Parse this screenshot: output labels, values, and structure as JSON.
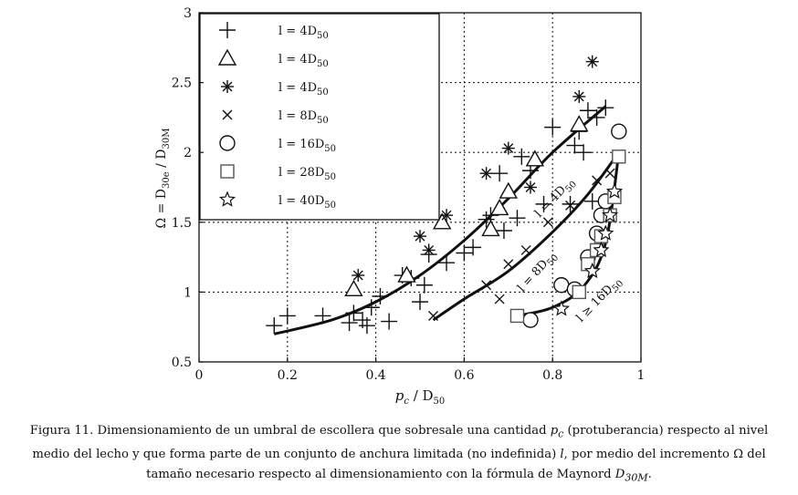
{
  "chart_data": {
    "type": "scatter",
    "title": "",
    "xlabel": "p_c / D_50",
    "ylabel": "Ω = D_30e / D_30M",
    "xlim": [
      0,
      1
    ],
    "ylim": [
      0.5,
      3
    ],
    "xticks": [
      "0",
      "0.2",
      "0.4",
      "0.6",
      "0.8",
      "1"
    ],
    "yticks": [
      "0.5",
      "1",
      "1.5",
      "2",
      "2.5",
      "3"
    ],
    "grid": "dotted",
    "legend_position": "top-left",
    "series": [
      {
        "name": "l = 4D50",
        "label_prefix": "l = 4D",
        "label_sub": "50",
        "marker": "plus",
        "points": [
          [
            0.17,
            0.76
          ],
          [
            0.2,
            0.83
          ],
          [
            0.28,
            0.83
          ],
          [
            0.34,
            0.78
          ],
          [
            0.35,
            0.85
          ],
          [
            0.37,
            0.8
          ],
          [
            0.38,
            0.76
          ],
          [
            0.39,
            0.89
          ],
          [
            0.41,
            0.97
          ],
          [
            0.43,
            0.79
          ],
          [
            0.46,
            1.12
          ],
          [
            0.48,
            1.1
          ],
          [
            0.5,
            0.93
          ],
          [
            0.51,
            1.05
          ],
          [
            0.52,
            1.27
          ],
          [
            0.56,
            1.21
          ],
          [
            0.6,
            1.28
          ],
          [
            0.62,
            1.32
          ],
          [
            0.65,
            1.52
          ],
          [
            0.68,
            1.85
          ],
          [
            0.69,
            1.44
          ],
          [
            0.72,
            1.53
          ],
          [
            0.73,
            1.97
          ],
          [
            0.75,
            1.87
          ],
          [
            0.78,
            1.63
          ],
          [
            0.8,
            2.18
          ],
          [
            0.84,
            1.63
          ],
          [
            0.85,
            2.05
          ],
          [
            0.86,
            2.15
          ],
          [
            0.87,
            2.0
          ],
          [
            0.88,
            2.3
          ],
          [
            0.89,
            1.65
          ],
          [
            0.9,
            2.25
          ],
          [
            0.92,
            2.32
          ],
          [
            0.66,
            1.55
          ]
        ]
      },
      {
        "name": "l = 4D50",
        "label_prefix": "l = 4D",
        "label_sub": "50",
        "marker": "triangle",
        "points": [
          [
            0.35,
            1.02
          ],
          [
            0.47,
            1.12
          ],
          [
            0.55,
            1.5
          ],
          [
            0.66,
            1.45
          ],
          [
            0.68,
            1.6
          ],
          [
            0.7,
            1.72
          ],
          [
            0.76,
            1.95
          ],
          [
            0.86,
            2.2
          ]
        ]
      },
      {
        "name": "l = 4D50",
        "label_prefix": "l = 4D",
        "label_sub": "50",
        "marker": "asterisk",
        "points": [
          [
            0.36,
            1.12
          ],
          [
            0.5,
            1.4
          ],
          [
            0.52,
            1.3
          ],
          [
            0.56,
            1.55
          ],
          [
            0.65,
            1.85
          ],
          [
            0.7,
            2.03
          ],
          [
            0.75,
            1.75
          ],
          [
            0.86,
            2.4
          ],
          [
            0.89,
            2.65
          ],
          [
            0.95,
            1.97
          ]
        ]
      },
      {
        "name": "l = 8D50",
        "label_prefix": "l = 8D",
        "label_sub": "50",
        "marker": "cross",
        "points": [
          [
            0.53,
            0.83
          ],
          [
            0.65,
            1.05
          ],
          [
            0.68,
            0.95
          ],
          [
            0.7,
            1.2
          ],
          [
            0.74,
            1.3
          ],
          [
            0.79,
            1.5
          ],
          [
            0.84,
            1.62
          ],
          [
            0.9,
            1.8
          ],
          [
            0.93,
            1.85
          ]
        ]
      },
      {
        "name": "l = 16D50",
        "label_prefix": "l = 16D",
        "label_sub": "50",
        "marker": "circle",
        "points": [
          [
            0.75,
            0.8
          ],
          [
            0.82,
            1.05
          ],
          [
            0.85,
            1.02
          ],
          [
            0.88,
            1.25
          ],
          [
            0.9,
            1.42
          ],
          [
            0.91,
            1.55
          ],
          [
            0.92,
            1.65
          ],
          [
            0.95,
            2.15
          ]
        ]
      },
      {
        "name": "l = 28D50",
        "label_prefix": "l = 28D",
        "label_sub": "50",
        "marker": "square",
        "points": [
          [
            0.72,
            0.83
          ],
          [
            0.86,
            1.0
          ],
          [
            0.88,
            1.2
          ],
          [
            0.9,
            1.3
          ],
          [
            0.91,
            1.4
          ],
          [
            0.93,
            1.55
          ],
          [
            0.94,
            1.68
          ],
          [
            0.95,
            1.97
          ]
        ]
      },
      {
        "name": "l = 40D50",
        "label_prefix": "l = 40D",
        "label_sub": "50",
        "marker": "star",
        "points": [
          [
            0.82,
            0.88
          ],
          [
            0.89,
            1.15
          ],
          [
            0.91,
            1.3
          ],
          [
            0.92,
            1.42
          ],
          [
            0.93,
            1.55
          ],
          [
            0.94,
            1.72
          ]
        ]
      }
    ],
    "curves": [
      {
        "name": "curve-4d50",
        "label_prefix": "l = 4D",
        "label_sub": "50",
        "points": [
          [
            0.17,
            0.7
          ],
          [
            0.3,
            0.8
          ],
          [
            0.4,
            0.93
          ],
          [
            0.5,
            1.12
          ],
          [
            0.6,
            1.37
          ],
          [
            0.7,
            1.67
          ],
          [
            0.8,
            2.0
          ],
          [
            0.92,
            2.33
          ]
        ],
        "label_at": [
          0.81,
          1.66
        ],
        "label_angle": -46
      },
      {
        "name": "curve-8d50",
        "label_prefix": "l = 8D",
        "label_sub": "50",
        "points": [
          [
            0.53,
            0.8
          ],
          [
            0.6,
            0.95
          ],
          [
            0.7,
            1.15
          ],
          [
            0.8,
            1.43
          ],
          [
            0.88,
            1.7
          ],
          [
            0.95,
            2.0
          ]
        ],
        "label_at": [
          0.77,
          1.13
        ],
        "label_angle": -48
      },
      {
        "name": "curve-16d50",
        "label_prefix": "l ≥ 16D",
        "label_sub": "50",
        "points": [
          [
            0.72,
            0.83
          ],
          [
            0.8,
            0.89
          ],
          [
            0.87,
            1.04
          ],
          [
            0.92,
            1.35
          ],
          [
            0.95,
            2.0
          ]
        ],
        "label_at": [
          0.91,
          0.93
        ],
        "label_angle": -46
      }
    ]
  },
  "caption": {
    "text_1": "Figura 11. Dimensionamiento de un umbral de escollera que sobresale una cantidad ",
    "pc_symbol": "p",
    "pc_sub": "c",
    "text_2": " (protuberancia) respecto al nivel medio del lecho y que forma parte de un conjunto de anchura limitada (no indefinida) ",
    "l_symbol": "l",
    "text_3": ", por medio del incremento Ω del tamaño necesario respecto al dimensionamiento con la fórmula de Maynord ",
    "d_symbol": "D",
    "d_sub": "30M",
    "text_4": "."
  }
}
